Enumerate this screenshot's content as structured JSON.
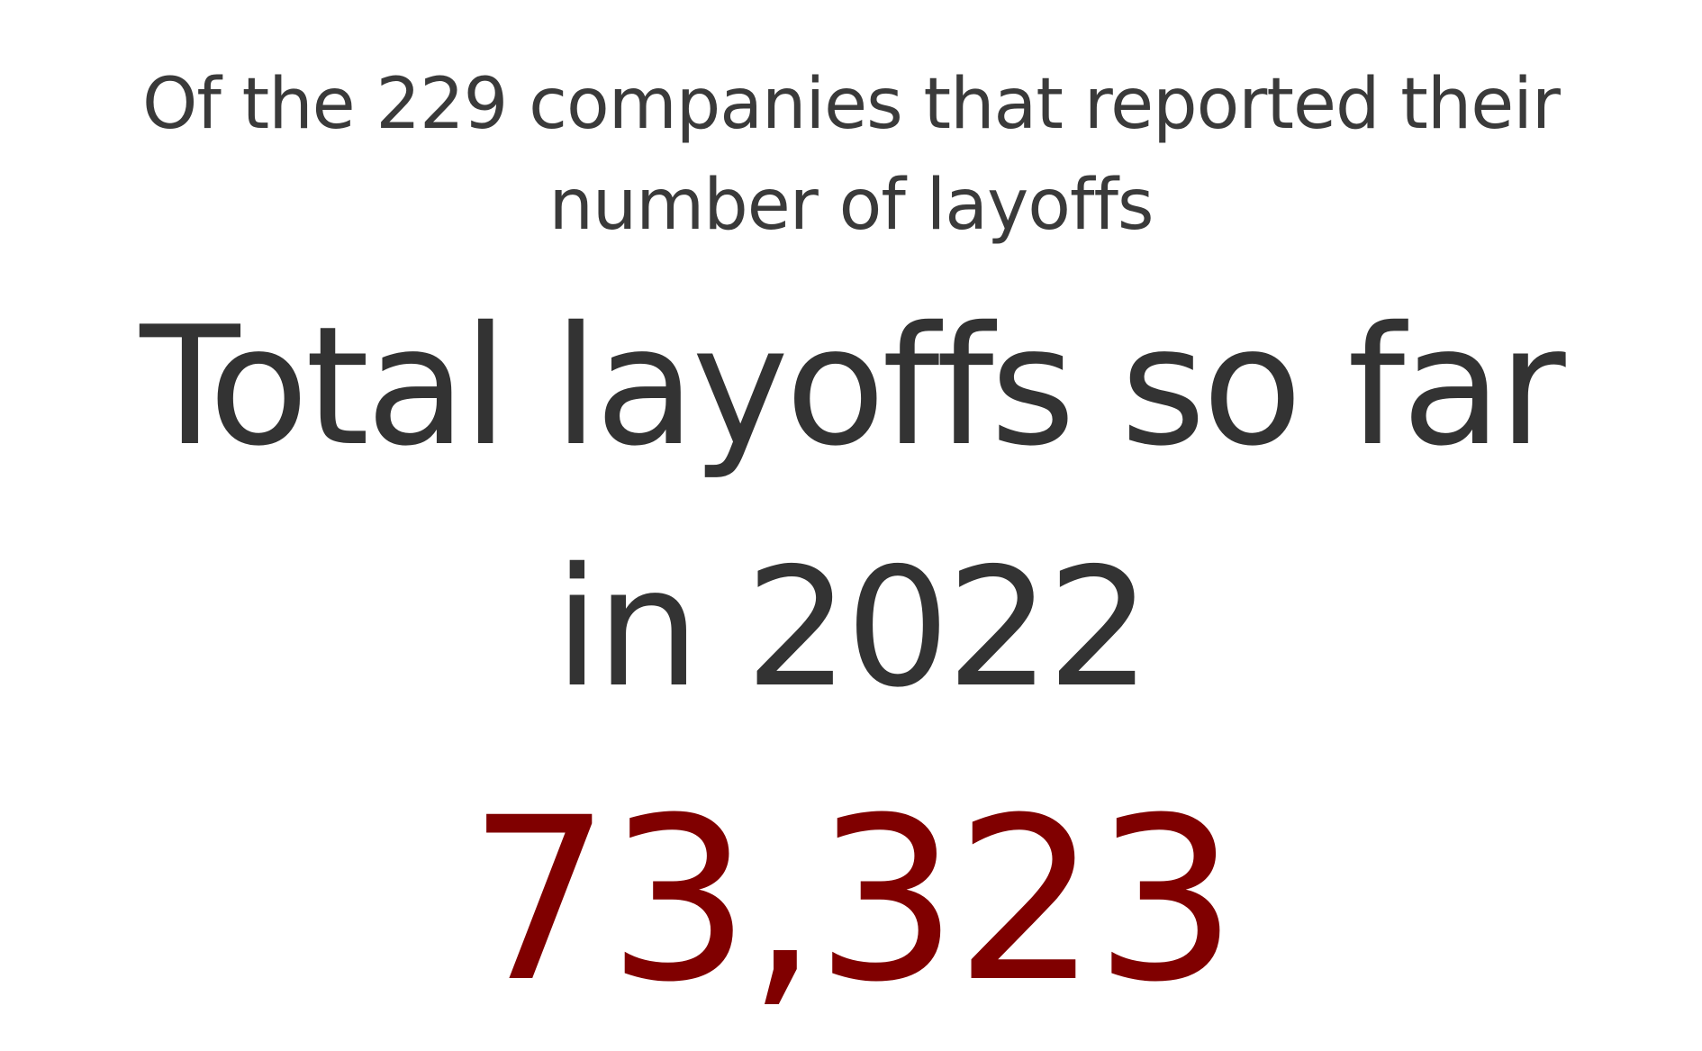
{
  "stat": {
    "subtitle_lines": [
      "Of the 229 companies that reported their",
      "number of layoffs"
    ],
    "title_lines": [
      "Total layoffs so far",
      "in 2022"
    ],
    "value": "73,323",
    "value_color": "#800000",
    "text_color": "#333333"
  }
}
